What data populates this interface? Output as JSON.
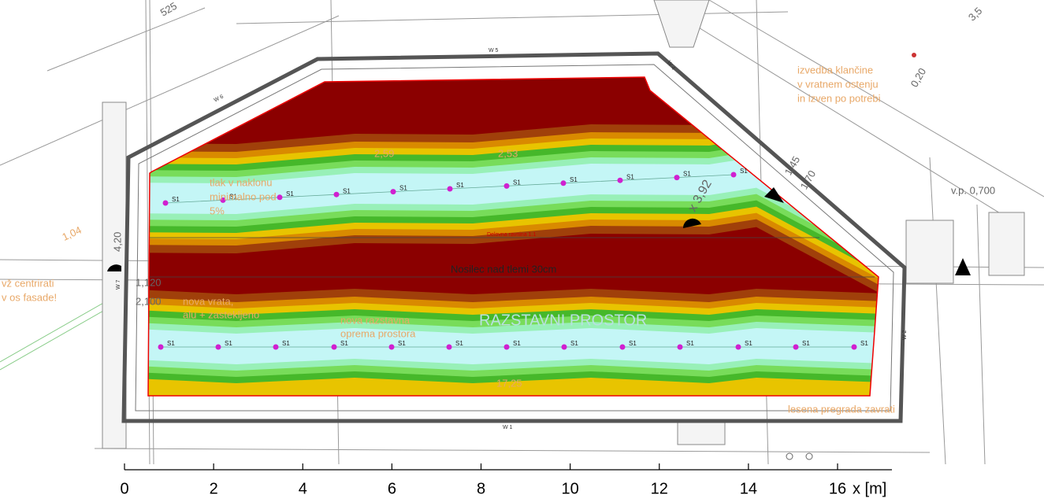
{
  "drawing": {
    "walls": {
      "w5": "W 5",
      "w6": "W 6",
      "w4": "W 4",
      "w1": "W 1",
      "w2": "W 2",
      "w7": "W 7"
    },
    "dimensions": {
      "d525": "525",
      "d259": "2,59",
      "d253": "2,53",
      "d1725": "17,25",
      "d104": "1,04",
      "d420": "4,20",
      "d1120": "1,120",
      "d2100": "2,100",
      "d392": "x 3,92",
      "d145": "1,45",
      "d170": "1,70",
      "d020": "0,20",
      "d35": "3,5",
      "vp": "v.p. 0,700"
    },
    "notes": {
      "ramp": [
        "izvedba klančine",
        "v vratnem ostenju",
        "in izven po potrebi"
      ],
      "floor": [
        "tlak v naklonu",
        "minimalno pod",
        "5%"
      ],
      "door": [
        "nova vrata,",
        "alu + zastekljeno"
      ],
      "display": [
        "nova razstavna",
        "oprema prostora"
      ],
      "facade": [
        "vž centrirati",
        "v os fasade!"
      ],
      "partition": "lesena pregrada zavrati",
      "workplane": "Delovna ravnina 1.1",
      "beam": "Nosilec nad tlemi 30cm",
      "room": "RAZSTAVNI PROSTOR"
    },
    "luminaires": {
      "label": "S1"
    },
    "axis": {
      "ticks": [
        0,
        2,
        4,
        6,
        8,
        10,
        12,
        14,
        16
      ],
      "label": "x [m]"
    }
  }
}
